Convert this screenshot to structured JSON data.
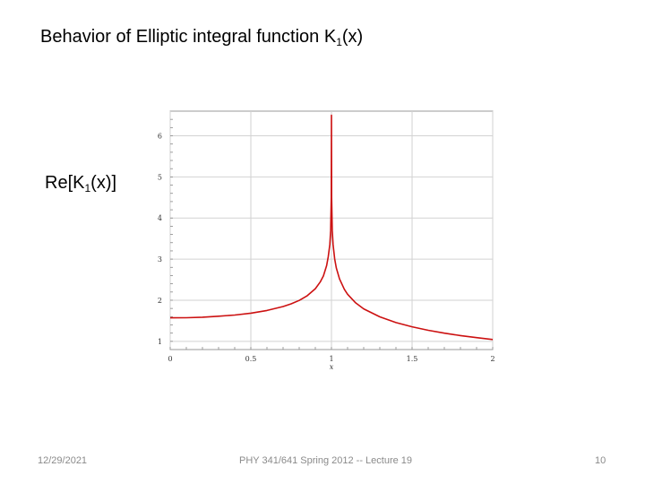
{
  "slide": {
    "title_prefix": "Behavior of Elliptic integral function K",
    "title_sub": "1",
    "title_suffix": "(x)",
    "label_prefix": "Re[K",
    "label_sub": "1",
    "label_suffix": "(x)]"
  },
  "footer": {
    "date": "12/29/2021",
    "center": "PHY 341/641 Spring 2012 -- Lecture 19",
    "page": "10"
  },
  "chart_data": {
    "type": "line",
    "title": "",
    "xlabel": "x",
    "ylabel": "",
    "xlim": [
      0,
      2
    ],
    "ylim": [
      0.8,
      6.6
    ],
    "x_ticks": [
      0,
      0.5,
      1,
      1.5,
      2
    ],
    "x_tick_labels": [
      "0",
      "0.5",
      "1",
      "1.5",
      "2"
    ],
    "y_ticks": [
      1,
      2,
      3,
      4,
      5,
      6
    ],
    "y_tick_labels": [
      "1",
      "2",
      "3",
      "4",
      "5",
      "6"
    ],
    "grid": true,
    "legend": "none",
    "line_color": "#cc1111",
    "series": [
      {
        "function": "Re[K1(x)]",
        "x": [
          0,
          0.1,
          0.2,
          0.3,
          0.4,
          0.5,
          0.6,
          0.7,
          0.75,
          0.8,
          0.85,
          0.9,
          0.93,
          0.95,
          0.97,
          0.98,
          0.99,
          0.995,
          0.999,
          1.0,
          1.001,
          1.005,
          1.01,
          1.02,
          1.03,
          1.05,
          1.08,
          1.1,
          1.15,
          1.2,
          1.3,
          1.4,
          1.5,
          1.6,
          1.7,
          1.8,
          1.9,
          2.0
        ],
        "y": [
          1.571,
          1.575,
          1.588,
          1.611,
          1.64,
          1.686,
          1.751,
          1.846,
          1.911,
          1.995,
          2.11,
          2.28,
          2.442,
          2.591,
          2.841,
          3.056,
          3.357,
          3.695,
          4.496,
          6.5,
          4.496,
          3.695,
          3.357,
          3.005,
          2.786,
          2.518,
          2.266,
          2.145,
          1.935,
          1.79,
          1.595,
          1.457,
          1.353,
          1.269,
          1.2,
          1.14,
          1.09,
          1.045
        ]
      }
    ]
  }
}
